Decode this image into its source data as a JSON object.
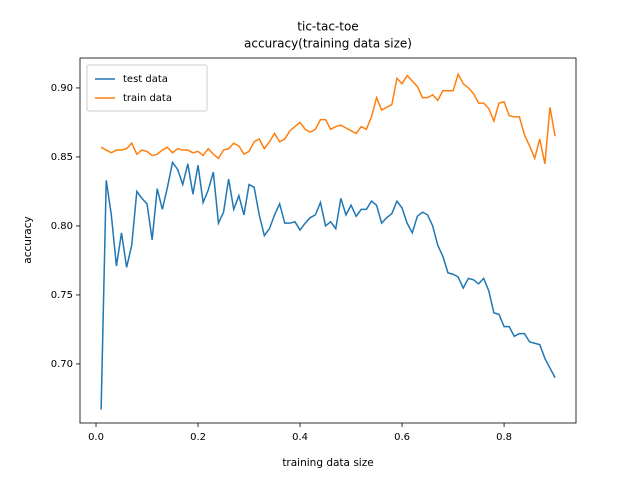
{
  "chart_data": {
    "type": "line",
    "title": "tic-tac-toe",
    "subtitle": "accuracy(training data size)",
    "x_label": "training data size",
    "y_label": "accuracy",
    "x": [
      0.01,
      0.02,
      0.03,
      0.04,
      0.05,
      0.06,
      0.07,
      0.08,
      0.09,
      0.1,
      0.11,
      0.12,
      0.13,
      0.14,
      0.15,
      0.16,
      0.17,
      0.18,
      0.19,
      0.2,
      0.21,
      0.22,
      0.23,
      0.24,
      0.25,
      0.26,
      0.27,
      0.28,
      0.29,
      0.3,
      0.31,
      0.32,
      0.33,
      0.34,
      0.35,
      0.36,
      0.37,
      0.38,
      0.39,
      0.4,
      0.41,
      0.42,
      0.43,
      0.44,
      0.45,
      0.46,
      0.47,
      0.48,
      0.49,
      0.5,
      0.51,
      0.52,
      0.53,
      0.54,
      0.55,
      0.56,
      0.57,
      0.58,
      0.59,
      0.6,
      0.61,
      0.62,
      0.63,
      0.64,
      0.65,
      0.66,
      0.67,
      0.68,
      0.69,
      0.7,
      0.71,
      0.72,
      0.73,
      0.74,
      0.75,
      0.76,
      0.77,
      0.78,
      0.79,
      0.8,
      0.81,
      0.82,
      0.83,
      0.84,
      0.85,
      0.86,
      0.87,
      0.88,
      0.89,
      0.9
    ],
    "series": [
      {
        "name": "test data",
        "color": "#1f77b4",
        "values": [
          0.667,
          0.833,
          0.808,
          0.771,
          0.795,
          0.77,
          0.786,
          0.825,
          0.82,
          0.816,
          0.79,
          0.827,
          0.812,
          0.828,
          0.846,
          0.841,
          0.83,
          0.845,
          0.823,
          0.844,
          0.817,
          0.826,
          0.839,
          0.802,
          0.81,
          0.834,
          0.812,
          0.822,
          0.808,
          0.83,
          0.828,
          0.808,
          0.793,
          0.798,
          0.808,
          0.816,
          0.802,
          0.802,
          0.803,
          0.797,
          0.802,
          0.806,
          0.808,
          0.817,
          0.8,
          0.803,
          0.798,
          0.82,
          0.808,
          0.815,
          0.807,
          0.812,
          0.812,
          0.818,
          0.815,
          0.802,
          0.806,
          0.809,
          0.818,
          0.813,
          0.802,
          0.795,
          0.807,
          0.81,
          0.808,
          0.8,
          0.786,
          0.778,
          0.766,
          0.765,
          0.763,
          0.755,
          0.762,
          0.761,
          0.758,
          0.762,
          0.753,
          0.737,
          0.736,
          0.727,
          0.727,
          0.72,
          0.722,
          0.722,
          0.716,
          0.715,
          0.714,
          0.704,
          0.697,
          0.69
        ]
      },
      {
        "name": "train data",
        "color": "#ff7f0e",
        "values": [
          0.857,
          0.855,
          0.853,
          0.855,
          0.855,
          0.856,
          0.86,
          0.852,
          0.855,
          0.854,
          0.851,
          0.852,
          0.855,
          0.857,
          0.853,
          0.856,
          0.855,
          0.855,
          0.853,
          0.854,
          0.851,
          0.856,
          0.852,
          0.849,
          0.855,
          0.856,
          0.86,
          0.858,
          0.852,
          0.854,
          0.861,
          0.863,
          0.856,
          0.861,
          0.867,
          0.861,
          0.863,
          0.869,
          0.872,
          0.875,
          0.87,
          0.868,
          0.87,
          0.877,
          0.877,
          0.87,
          0.872,
          0.873,
          0.871,
          0.869,
          0.867,
          0.872,
          0.87,
          0.879,
          0.893,
          0.884,
          0.886,
          0.888,
          0.907,
          0.903,
          0.909,
          0.905,
          0.901,
          0.893,
          0.893,
          0.895,
          0.891,
          0.898,
          0.898,
          0.898,
          0.91,
          0.903,
          0.9,
          0.896,
          0.889,
          0.889,
          0.885,
          0.876,
          0.889,
          0.89,
          0.88,
          0.879,
          0.879,
          0.866,
          0.858,
          0.849,
          0.863,
          0.845,
          0.886,
          0.865
        ]
      }
    ],
    "xlim": [
      -0.0314,
      0.941
    ],
    "ylim": [
      0.6572,
      0.9217
    ],
    "xticks": [
      {
        "value": 0,
        "label": "0.0"
      },
      0.2,
      0.4,
      0.6,
      0.8
    ],
    "yticks": [
      {
        "value": 0.7,
        "label": "0.70"
      },
      0.75,
      {
        "value": 0.8,
        "label": "0.80"
      },
      0.85,
      {
        "value": 0.9,
        "label": "0.90"
      }
    ],
    "legend": "upper left",
    "grid": false
  }
}
